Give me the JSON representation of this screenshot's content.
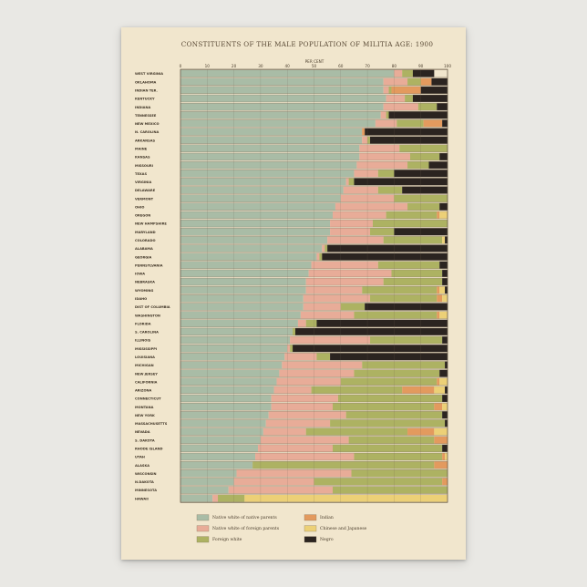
{
  "chart_data": {
    "type": "bar",
    "orientation": "horizontal",
    "stacked": true,
    "title": "CONSTITUENTS OF THE MALE POPULATION OF MILITIA AGE: 1900",
    "axis_label": "PER CENT",
    "xlim": [
      0,
      100
    ],
    "ticks": [
      0,
      10,
      20,
      30,
      40,
      50,
      60,
      70,
      80,
      90,
      100
    ],
    "legend_position": "bottom",
    "series": [
      {
        "name": "Native white of native parents",
        "color": "#a9bca6"
      },
      {
        "name": "Native white of foreign parents",
        "color": "#e8ac98"
      },
      {
        "name": "Foreign white",
        "color": "#adb262"
      },
      {
        "name": "Indian",
        "color": "#e39a5e"
      },
      {
        "name": "Chinese and Japanese",
        "color": "#ecd077"
      },
      {
        "name": "Negro",
        "color": "#2b2420"
      }
    ],
    "categories": [
      {
        "label": "WEST VIRGINIA",
        "values": [
          80,
          3,
          4,
          0,
          0,
          8
        ]
      },
      {
        "label": "OKLAHOMA",
        "values": [
          76,
          9,
          5,
          4,
          0,
          6
        ]
      },
      {
        "label": "INDIAN TER.",
        "values": [
          76,
          2,
          1,
          11,
          0,
          10
        ]
      },
      {
        "label": "KENTUCKY",
        "values": [
          77,
          7,
          3,
          0,
          0,
          13
        ]
      },
      {
        "label": "INDIANA",
        "values": [
          76,
          13,
          7,
          0,
          0,
          4
        ]
      },
      {
        "label": "TENNESSEE",
        "values": [
          75,
          2,
          1,
          0,
          0,
          22
        ]
      },
      {
        "label": "NEW MEXICO",
        "values": [
          73,
          8,
          10,
          7,
          0,
          2
        ]
      },
      {
        "label": "N. CAROLINA",
        "values": [
          68,
          0,
          0,
          1,
          0,
          31
        ]
      },
      {
        "label": "ARKANSAS",
        "values": [
          68,
          2,
          1,
          0,
          0,
          29
        ]
      },
      {
        "label": "MAINE",
        "values": [
          67,
          15,
          18,
          0,
          0,
          0
        ]
      },
      {
        "label": "KANSAS",
        "values": [
          67,
          19,
          11,
          0,
          0,
          3
        ]
      },
      {
        "label": "MISSOURI",
        "values": [
          66,
          19,
          8,
          0,
          0,
          7
        ]
      },
      {
        "label": "TEXAS",
        "values": [
          65,
          9,
          6,
          0,
          0,
          20
        ]
      },
      {
        "label": "VIRGINIA",
        "values": [
          62,
          1,
          2,
          0,
          0,
          35
        ]
      },
      {
        "label": "DELAWARE",
        "values": [
          61,
          13,
          9,
          0,
          0,
          17
        ]
      },
      {
        "label": "VERMONT",
        "values": [
          60,
          20,
          20,
          0,
          0,
          0
        ]
      },
      {
        "label": "OHIO",
        "values": [
          58,
          27,
          12,
          0,
          0,
          3
        ]
      },
      {
        "label": "OREGON",
        "values": [
          57,
          20,
          19,
          1,
          3,
          0
        ]
      },
      {
        "label": "NEW HAMPSHIRE",
        "values": [
          56,
          16,
          28,
          0,
          0,
          0
        ]
      },
      {
        "label": "MARYLAND",
        "values": [
          56,
          15,
          9,
          0,
          0,
          20
        ]
      },
      {
        "label": "COLORADO",
        "values": [
          55,
          21,
          22,
          0,
          1,
          1
        ]
      },
      {
        "label": "ALABAMA",
        "values": [
          53,
          1,
          1,
          0,
          0,
          45
        ]
      },
      {
        "label": "GEORGIA",
        "values": [
          51,
          1,
          1,
          0,
          0,
          47
        ]
      },
      {
        "label": "PENNSYLVANIA",
        "values": [
          49,
          25,
          23,
          0,
          0,
          3
        ]
      },
      {
        "label": "IOWA",
        "values": [
          48,
          31,
          19,
          0,
          0,
          2
        ]
      },
      {
        "label": "NEBRASKA",
        "values": [
          47,
          29,
          22,
          0,
          0,
          2
        ]
      },
      {
        "label": "WYOMING",
        "values": [
          47,
          21,
          28,
          1,
          2,
          1
        ]
      },
      {
        "label": "IDAHO",
        "values": [
          46,
          25,
          25,
          2,
          2,
          0
        ]
      },
      {
        "label": "DIST OF COLUMBIA",
        "values": [
          46,
          14,
          9,
          0,
          0,
          31
        ]
      },
      {
        "label": "WASHINGTON",
        "values": [
          45,
          20,
          31,
          1,
          3,
          0
        ]
      },
      {
        "label": "FLORIDA",
        "values": [
          44,
          3,
          4,
          0,
          0,
          49
        ]
      },
      {
        "label": "S. CAROLINA",
        "values": [
          42,
          0,
          1,
          0,
          0,
          57
        ]
      },
      {
        "label": "ILLINOIS",
        "values": [
          41,
          30,
          27,
          0,
          0,
          2
        ]
      },
      {
        "label": "MISSISSIPPI",
        "values": [
          40,
          1,
          1,
          0,
          0,
          58
        ]
      },
      {
        "label": "LOUISIANA",
        "values": [
          39,
          12,
          5,
          0,
          0,
          44
        ]
      },
      {
        "label": "MICHIGAN",
        "values": [
          38,
          30,
          31,
          0,
          0,
          1
        ]
      },
      {
        "label": "NEW JERSEY",
        "values": [
          37,
          28,
          32,
          0,
          0,
          3
        ]
      },
      {
        "label": "CALIFORNIA",
        "values": [
          36,
          24,
          36,
          1,
          3,
          0
        ]
      },
      {
        "label": "ARIZONA",
        "values": [
          35,
          14,
          34,
          12,
          4,
          1
        ]
      },
      {
        "label": "CONNECTICUT",
        "values": [
          34,
          25,
          39,
          0,
          0,
          2
        ]
      },
      {
        "label": "MONTANA",
        "values": [
          34,
          23,
          38,
          3,
          2,
          0
        ]
      },
      {
        "label": "NEW YORK",
        "values": [
          33,
          29,
          36,
          0,
          0,
          2
        ]
      },
      {
        "label": "MASSACHUSETTS",
        "values": [
          32,
          24,
          43,
          0,
          0,
          1
        ]
      },
      {
        "label": "NEVADA",
        "values": [
          31,
          16,
          38,
          10,
          5,
          0
        ]
      },
      {
        "label": "S. DAKOTA",
        "values": [
          30,
          33,
          32,
          5,
          0,
          0
        ]
      },
      {
        "label": "RHODE ISLAND",
        "values": [
          29,
          28,
          41,
          0,
          0,
          2
        ]
      },
      {
        "label": "UTAH",
        "values": [
          28,
          37,
          33,
          1,
          1,
          0
        ]
      },
      {
        "label": "ALASKA",
        "values": [
          27,
          0,
          68,
          5,
          0,
          0
        ]
      },
      {
        "label": "WISCONSIN",
        "values": [
          21,
          43,
          36,
          0,
          0,
          0
        ]
      },
      {
        "label": "N.DAKOTA",
        "values": [
          20,
          30,
          48,
          2,
          0,
          0
        ]
      },
      {
        "label": "MINNESOTA",
        "values": [
          18,
          39,
          43,
          0,
          0,
          0
        ]
      },
      {
        "label": "HAWAII",
        "values": [
          12,
          2,
          10,
          0,
          76,
          0
        ]
      }
    ]
  }
}
